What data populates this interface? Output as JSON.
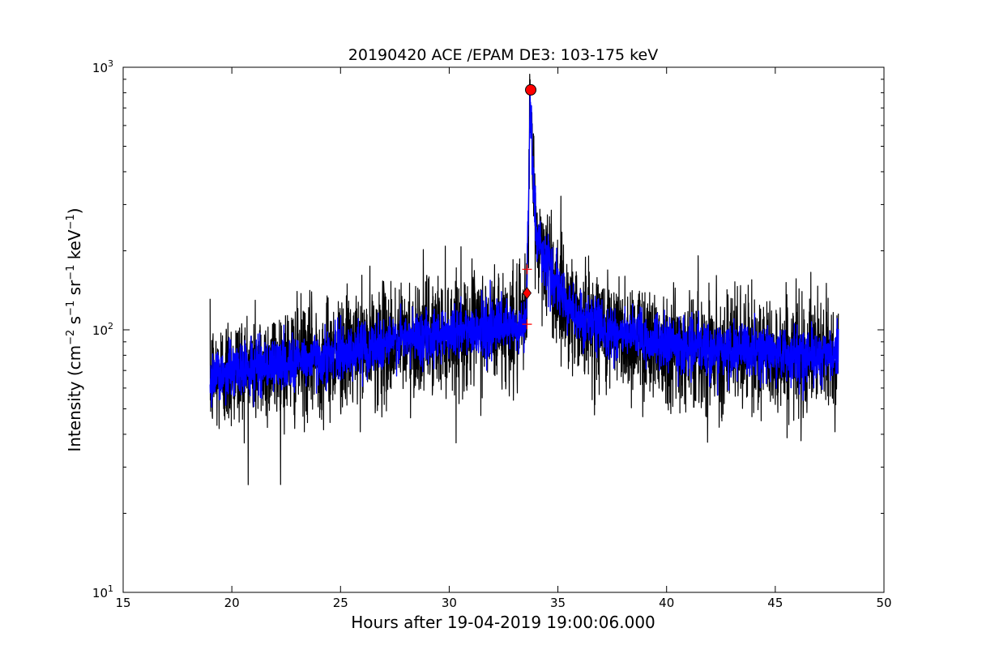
{
  "chart_data": {
    "type": "line",
    "title": "20190420 ACE /EPAM DE3: 103-175 keV",
    "xlabel": "Hours after 19-04-2019 19:00:06.000",
    "ylabel": {
      "prefix": "Intensity (cm",
      "parts": [
        {
          "text": "Intensity (cm",
          "sup": false
        },
        {
          "text": "−2",
          "sup": true
        },
        {
          "text": " s",
          "sup": false
        },
        {
          "text": "−1",
          "sup": true
        },
        {
          "text": " sr",
          "sup": false
        },
        {
          "text": "−1",
          "sup": true
        },
        {
          "text": " keV",
          "sup": false
        },
        {
          "text": "−1",
          "sup": true
        },
        {
          "text": ")",
          "sup": false
        }
      ]
    },
    "xlim": [
      15,
      50
    ],
    "ylim": [
      10,
      1000
    ],
    "yscale": "log",
    "grid": false,
    "x_ticks": [
      15,
      20,
      25,
      30,
      35,
      40,
      45,
      50
    ],
    "x_tick_labels": [
      "15",
      "20",
      "25",
      "30",
      "35",
      "40",
      "45",
      "50"
    ],
    "y_ticks": [
      10,
      100,
      1000
    ],
    "y_tick_labels": [
      {
        "base": "10",
        "exp": "1"
      },
      {
        "base": "10",
        "exp": "2"
      },
      {
        "base": "10",
        "exp": "3"
      }
    ],
    "series": [
      {
        "color": "#000000",
        "style": "raw-noisy",
        "x_range": [
          19.0,
          47.9
        ],
        "profile": [
          [
            19.0,
            65
          ],
          [
            20.0,
            70
          ],
          [
            22.0,
            74
          ],
          [
            24.0,
            78
          ],
          [
            26.0,
            85
          ],
          [
            28.0,
            92
          ],
          [
            30.0,
            98
          ],
          [
            32.0,
            102
          ],
          [
            33.4,
            100
          ],
          [
            33.55,
            120
          ],
          [
            33.65,
            300
          ],
          [
            33.72,
            760
          ],
          [
            33.8,
            500
          ],
          [
            34.0,
            230
          ],
          [
            34.5,
            180
          ],
          [
            35.0,
            140
          ],
          [
            36.0,
            110
          ],
          [
            38.0,
            95
          ],
          [
            40.0,
            88
          ],
          [
            42.0,
            84
          ],
          [
            44.0,
            82
          ],
          [
            46.0,
            80
          ],
          [
            47.9,
            80
          ]
        ]
      },
      {
        "color": "#0000ff",
        "style": "smoothed",
        "x_range": [
          19.0,
          47.9
        ],
        "profile": [
          [
            19.0,
            65
          ],
          [
            20.0,
            70
          ],
          [
            22.0,
            74
          ],
          [
            24.0,
            78
          ],
          [
            26.0,
            85
          ],
          [
            28.0,
            92
          ],
          [
            30.0,
            98
          ],
          [
            32.0,
            102
          ],
          [
            33.4,
            100
          ],
          [
            33.55,
            120
          ],
          [
            33.65,
            300
          ],
          [
            33.72,
            760
          ],
          [
            33.8,
            500
          ],
          [
            34.0,
            230
          ],
          [
            34.5,
            180
          ],
          [
            35.0,
            140
          ],
          [
            36.0,
            110
          ],
          [
            38.0,
            95
          ],
          [
            40.0,
            88
          ],
          [
            42.0,
            84
          ],
          [
            44.0,
            82
          ],
          [
            46.0,
            80
          ],
          [
            47.9,
            80
          ]
        ]
      }
    ],
    "markers": [
      {
        "kind": "circle",
        "x": 33.75,
        "y": 820,
        "color": "#ff0000"
      },
      {
        "kind": "diamond",
        "x": 33.58,
        "y": 138,
        "color": "#ff0000"
      },
      {
        "kind": "plus",
        "x": 33.58,
        "y": 170,
        "color": "#ff0000"
      },
      {
        "kind": "plus",
        "x": 33.58,
        "y": 105,
        "color": "#ff0000"
      }
    ]
  }
}
